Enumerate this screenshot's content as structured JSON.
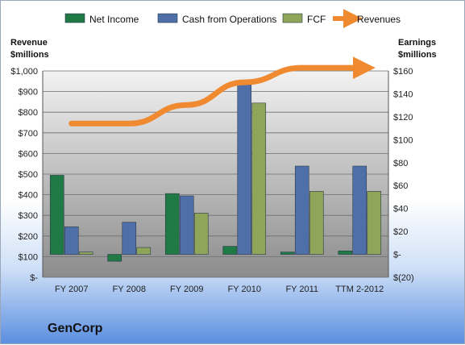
{
  "company": "GenCorp",
  "chart_data": {
    "type": "bar",
    "categories": [
      "FY 2007",
      "FY 2008",
      "FY 2009",
      "FY 2010",
      "FY 2011",
      "TTM 2-2012"
    ],
    "series": [
      {
        "name": "Net Income",
        "axis": "right",
        "values": [
          69,
          -6,
          53,
          7,
          2,
          3
        ],
        "color": "#1f7a45"
      },
      {
        "name": "Cash from Operations",
        "axis": "right",
        "values": [
          24,
          28,
          51,
          148,
          77,
          77
        ],
        "color": "#4f6fa8"
      },
      {
        "name": "FCF",
        "axis": "right",
        "values": [
          2,
          6,
          36,
          132,
          55,
          55
        ],
        "color": "#8fa65a"
      },
      {
        "name": "Revenues",
        "axis": "left",
        "type": "line",
        "values": [
          745,
          745,
          835,
          945,
          1015,
          1015
        ],
        "color": "#f08a30"
      }
    ],
    "left_axis": {
      "title_line1": "Revenue",
      "title_line2": "$millions",
      "min": 0,
      "max": 1000,
      "step": 100,
      "tick_labels": [
        "$-",
        "$100",
        "$200",
        "$300",
        "$400",
        "$500",
        "$600",
        "$700",
        "$800",
        "$900",
        "$1,000"
      ]
    },
    "right_axis": {
      "title_line1": "Earnings",
      "title_line2": "$millions",
      "min": -20,
      "max": 160,
      "step": 20,
      "tick_labels": [
        "$(20)",
        "$-",
        "$20",
        "$40",
        "$60",
        "$80",
        "$100",
        "$120",
        "$140",
        "$160"
      ]
    },
    "legend_position": "top",
    "grid": true
  }
}
